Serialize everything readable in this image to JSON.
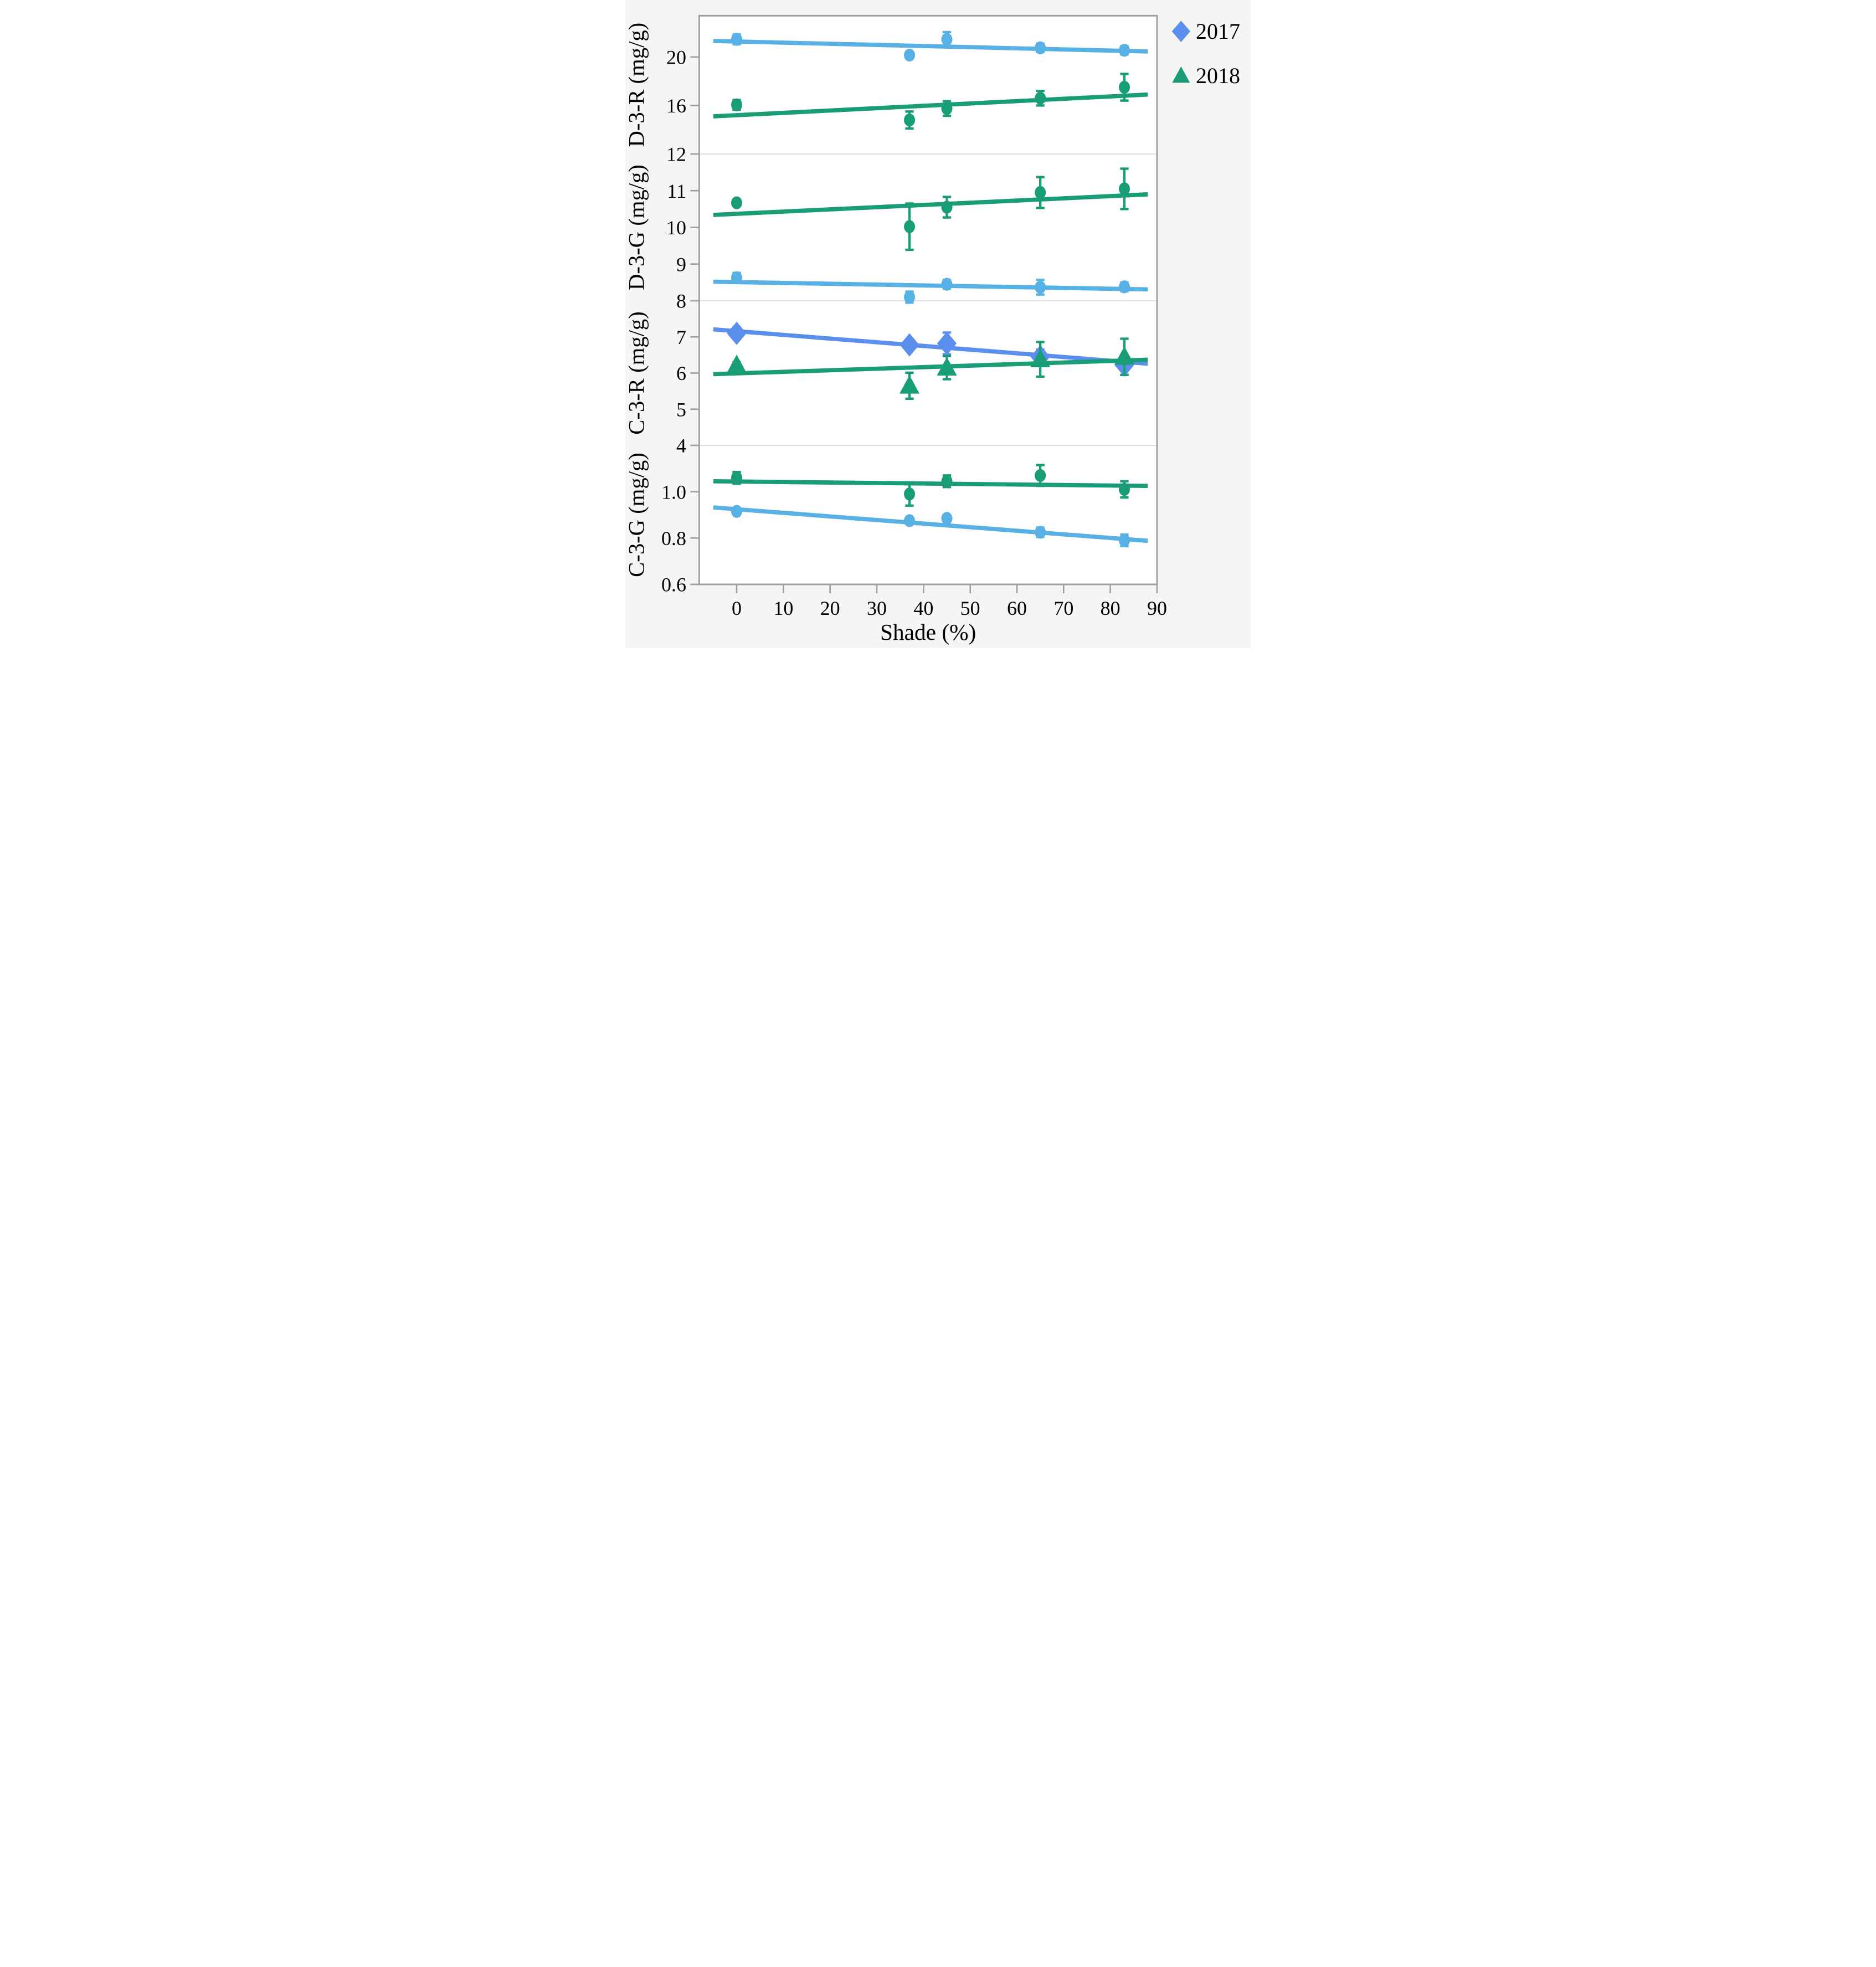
{
  "chart_data": {
    "type": "scatter",
    "title": "",
    "xlabel": "Shade (%)",
    "xlim": [
      -8,
      90
    ],
    "x_ticks": [
      0,
      10,
      20,
      30,
      40,
      50,
      60,
      70,
      80,
      90
    ],
    "grid": "panel-boundaries-only",
    "legend_position": "top-right-outside",
    "legend": [
      {
        "label": "2017",
        "marker": "diamond",
        "color": "#5a8fee"
      },
      {
        "label": "2018",
        "marker": "triangle",
        "color": "#199d76"
      }
    ],
    "colors": {
      "sky_blue_2017": "#57b1e5",
      "cornflower_2017": "#5a8fee",
      "green_2018": "#199d76",
      "plot_border": "#a0a0a0",
      "panel_gridline": "#d8d8d8",
      "figure_background": "#f5f6f4",
      "plot_background": "#ffffff"
    },
    "x_values_all_series": [
      0,
      37,
      45,
      65,
      83
    ],
    "panels": [
      {
        "ylabel": "D-3-R (mg/g)",
        "ylim": [
          12,
          23.4
        ],
        "yticks": [
          {
            "v": 20,
            "label": "20"
          },
          {
            "v": 16,
            "label": "16"
          },
          {
            "v": 12,
            "label": "12"
          }
        ],
        "series": [
          {
            "name": "2017",
            "marker": "circle",
            "color": "#57b1e5",
            "x": [
              0,
              37,
              45,
              65,
              83
            ],
            "y": [
              21.45,
              20.15,
              21.45,
              20.75,
              20.55
            ],
            "yerr": [
              0.4,
              0,
              0.6,
              0.35,
              0.35
            ],
            "fit": {
              "x": [
                -5,
                88
              ],
              "y": [
                21.32,
                20.45
              ]
            }
          },
          {
            "name": "2018",
            "marker": "circle",
            "color": "#199d76",
            "x": [
              0,
              37,
              45,
              65,
              83
            ],
            "y": [
              16.05,
              14.8,
              15.75,
              16.6,
              17.5
            ],
            "yerr": [
              0.4,
              0.7,
              0.6,
              0.6,
              1.1
            ],
            "fit": {
              "x": [
                -5,
                88
              ],
              "y": [
                15.1,
                16.9
              ]
            }
          }
        ]
      },
      {
        "ylabel": "D-3-G (mg/g)",
        "ylim": [
          8,
          12
        ],
        "yticks": [
          {
            "v": 11,
            "label": "11"
          },
          {
            "v": 10,
            "label": "10"
          },
          {
            "v": 9,
            "label": "9"
          },
          {
            "v": 8,
            "label": "8"
          }
        ],
        "series": [
          {
            "name": "2017",
            "marker": "circle",
            "color": "#57b1e5",
            "x": [
              0,
              37,
              45,
              65,
              83
            ],
            "y": [
              8.63,
              8.1,
              8.45,
              8.37,
              8.38
            ],
            "yerr": [
              0.13,
              0.15,
              0.12,
              0.2,
              0.12
            ],
            "fit": {
              "x": [
                -5,
                88
              ],
              "y": [
                8.52,
                8.31
              ]
            }
          },
          {
            "name": "2018",
            "marker": "circle",
            "color": "#199d76",
            "x": [
              0,
              37,
              45,
              65,
              83
            ],
            "y": [
              10.67,
              10.02,
              10.55,
              10.95,
              11.05
            ],
            "yerr": [
              0.06,
              0.63,
              0.28,
              0.42,
              0.55
            ],
            "fit": {
              "x": [
                -5,
                88
              ],
              "y": [
                10.34,
                10.9
              ]
            }
          }
        ]
      },
      {
        "ylabel": "C-3-R (mg/g)",
        "ylim": [
          4,
          8
        ],
        "yticks": [
          {
            "v": 7,
            "label": "7"
          },
          {
            "v": 6,
            "label": "6"
          },
          {
            "v": 5,
            "label": "5"
          },
          {
            "v": 4,
            "label": "4"
          }
        ],
        "series": [
          {
            "name": "2017",
            "marker": "diamond",
            "color": "#5a8fee",
            "x": [
              0,
              37,
              45,
              65,
              83
            ],
            "y": [
              7.1,
              6.78,
              6.82,
              6.45,
              6.22
            ],
            "yerr": [
              0.17,
              0,
              0.3,
              0.2,
              0.27
            ],
            "fit": {
              "x": [
                -5,
                88
              ],
              "y": [
                7.21,
                6.26
              ]
            }
          },
          {
            "name": "2018",
            "marker": "triangle",
            "color": "#199d76",
            "x": [
              0,
              37,
              45,
              65,
              83
            ],
            "y": [
              6.22,
              5.65,
              6.15,
              6.38,
              6.45
            ],
            "yerr": [
              0.08,
              0.36,
              0.32,
              0.48,
              0.5
            ],
            "fit": {
              "x": [
                -5,
                88
              ],
              "y": [
                5.97,
                6.37
              ]
            }
          }
        ]
      },
      {
        "ylabel": "C-3-G (mg/g)",
        "ylim": [
          0.6,
          1.2
        ],
        "yticks": [
          {
            "v": 1.0,
            "label": "1.0"
          },
          {
            "v": 0.8,
            "label": "0.8"
          },
          {
            "v": 0.6,
            "label": "0.6"
          }
        ],
        "series": [
          {
            "name": "2017",
            "marker": "circle",
            "color": "#57b1e5",
            "x": [
              0,
              37,
              45,
              65,
              83
            ],
            "y": [
              0.915,
              0.875,
              0.885,
              0.825,
              0.79
            ],
            "yerr": [
              0.012,
              0.01,
              0.012,
              0.02,
              0.025
            ],
            "fit": {
              "x": [
                -5,
                88
              ],
              "y": [
                0.932,
                0.788
              ]
            }
          },
          {
            "name": "2018",
            "marker": "circle",
            "color": "#199d76",
            "x": [
              0,
              37,
              45,
              65,
              83
            ],
            "y": [
              1.06,
              0.99,
              1.045,
              1.07,
              1.01
            ],
            "yerr": [
              0.025,
              0.05,
              0.025,
              0.045,
              0.035
            ],
            "fit": {
              "x": [
                -5,
                88
              ],
              "y": [
                1.045,
                1.025
              ]
            }
          }
        ]
      }
    ]
  }
}
